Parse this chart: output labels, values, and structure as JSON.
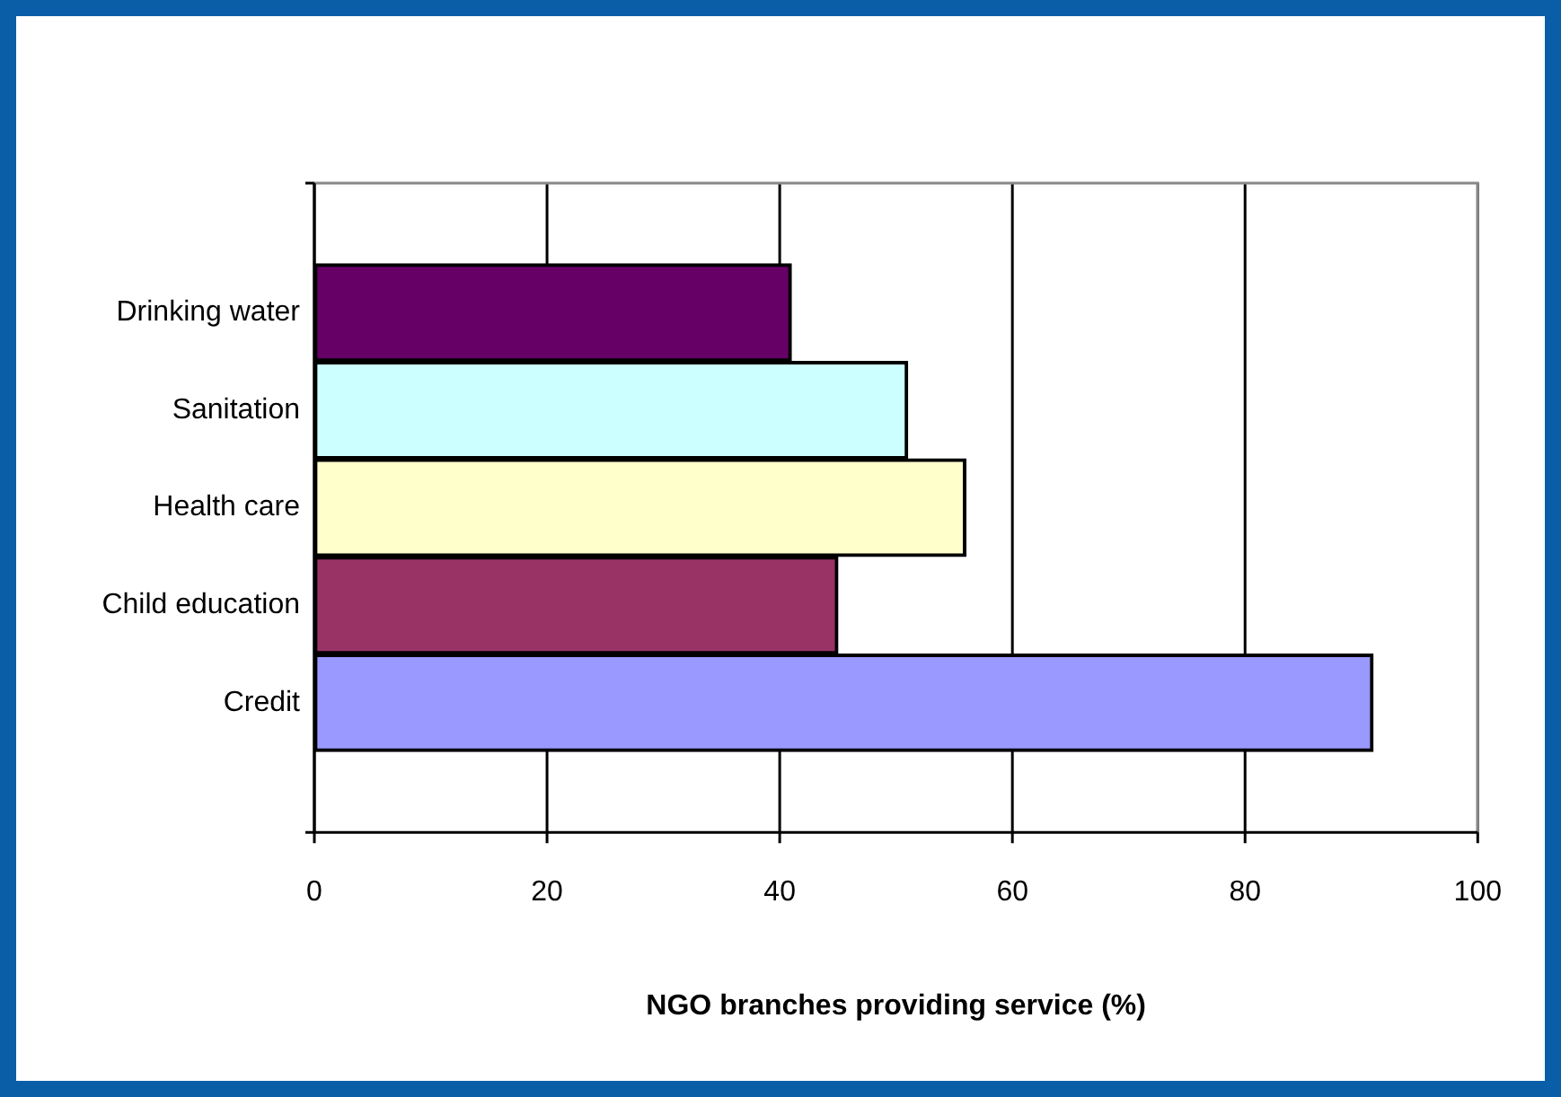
{
  "chart_data": {
    "type": "bar",
    "orientation": "horizontal",
    "xlabel": "NGO branches providing service (%)",
    "categories": [
      "Drinking water",
      "Sanitation",
      "Health care",
      "Child education",
      "Credit"
    ],
    "values": [
      41,
      51,
      56,
      45,
      91
    ],
    "colors": [
      "#660066",
      "#ccffff",
      "#ffffcc",
      "#993366",
      "#9999ff"
    ],
    "xlim": [
      0,
      100
    ],
    "xticks": [
      0,
      20,
      40,
      60,
      80,
      100
    ],
    "grid": "x",
    "legend": false
  }
}
